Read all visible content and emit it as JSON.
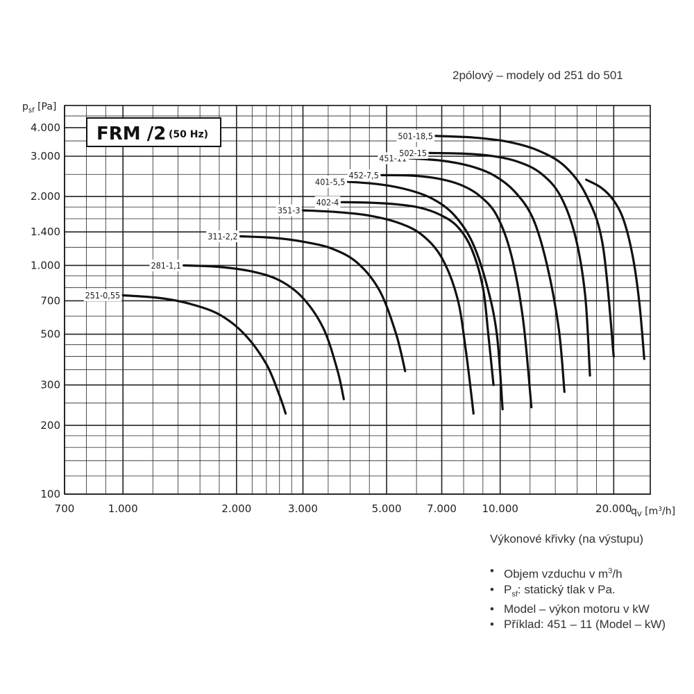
{
  "subtitle": "2pólový – modely od 251 do 501",
  "box": {
    "title": "FRM /2",
    "sub": "(50 Hz)"
  },
  "legend_title": "Výkonové křivky (na výstupu)",
  "notes": [
    [
      "Objem vzduchu v m",
      "3",
      "/h"
    ],
    [
      "P",
      "sf",
      ": statický tlak v Pa."
    ],
    [
      "Model – výkon motoru v kW"
    ],
    [
      "Příklad: 451 – 11 (Model – kW)"
    ]
  ],
  "chart_data": {
    "type": "line",
    "x_scale": "log",
    "y_scale": "log",
    "xlabel": {
      "main": "q",
      "sub": "V",
      "unit_pre": " [m",
      "sup": "3",
      "unit_post": "/h]"
    },
    "ylabel": {
      "main": "p",
      "sub": "sf",
      "unit": " [Pa]"
    },
    "xlim": [
      700,
      25000
    ],
    "ylim": [
      100,
      5000
    ],
    "x_ticks": [
      700,
      1000,
      2000,
      3000,
      5000,
      7000,
      10000,
      20000
    ],
    "x_tick_labels": [
      "700",
      "1.000",
      "2.000",
      "3.000",
      "5.000",
      "7.000",
      "10.000",
      "20.000"
    ],
    "y_ticks": [
      100,
      200,
      300,
      500,
      700,
      1000,
      1400,
      2000,
      3000,
      4000
    ],
    "y_tick_labels": [
      "100",
      "200",
      "300",
      "500",
      "700",
      "1.000",
      "1.400",
      "2.000",
      "3.000",
      "4.000"
    ],
    "grid": true,
    "series": [
      {
        "name": "251-0,55",
        "x": [
          1000,
          1250,
          1500,
          1800,
          2100,
          2400,
          2600,
          2700
        ],
        "y": [
          740,
          720,
          680,
          610,
          500,
          370,
          270,
          225
        ]
      },
      {
        "name": "281-1,1",
        "x": [
          1450,
          1800,
          2200,
          2600,
          3000,
          3400,
          3700,
          3850
        ],
        "y": [
          1000,
          985,
          940,
          860,
          720,
          530,
          350,
          260
        ]
      },
      {
        "name": "311-2,2",
        "x": [
          2050,
          2500,
          3000,
          3600,
          4200,
          4800,
          5300,
          5600
        ],
        "y": [
          1340,
          1320,
          1270,
          1180,
          1020,
          770,
          500,
          345
        ]
      },
      {
        "name": "351-3",
        "x": [
          3000,
          3700,
          4500,
          5400,
          6200,
          7000,
          7700,
          8100,
          8500
        ],
        "y": [
          1740,
          1710,
          1650,
          1530,
          1360,
          1080,
          720,
          430,
          225
        ]
      },
      {
        "name": "402-4",
        "x": [
          3800,
          4500,
          5300,
          6100,
          6900,
          7700,
          8400,
          9000,
          9300,
          9600
        ],
        "y": [
          1890,
          1880,
          1850,
          1790,
          1670,
          1480,
          1180,
          800,
          500,
          300
        ]
      },
      {
        "name": "401-5,5",
        "x": [
          3950,
          4800,
          5700,
          6600,
          7500,
          8400,
          9200,
          9800,
          10150
        ],
        "y": [
          2320,
          2260,
          2140,
          1960,
          1680,
          1280,
          830,
          500,
          235
        ]
      },
      {
        "name": "452-7,5",
        "x": [
          4850,
          5800,
          6800,
          7800,
          8800,
          9800,
          10700,
          11500,
          12100
        ],
        "y": [
          2480,
          2470,
          2400,
          2260,
          2020,
          1650,
          1110,
          580,
          240
        ]
      },
      {
        "name": "451-11",
        "x": [
          5750,
          7000,
          8300,
          9600,
          10900,
          12200,
          13300,
          14300,
          14800
        ],
        "y": [
          2940,
          2870,
          2720,
          2480,
          2110,
          1610,
          1010,
          530,
          280
        ]
      },
      {
        "name": "502-15",
        "x": [
          6500,
          8000,
          9600,
          11200,
          12800,
          14400,
          15800,
          16800,
          17300
        ],
        "y": [
          3100,
          3080,
          3000,
          2830,
          2530,
          2030,
          1350,
          740,
          330
        ]
      },
      {
        "name": "501-18,5",
        "x": [
          6750,
          8500,
          10500,
          12600,
          14800,
          16900,
          18700,
          20000
        ],
        "y": [
          3680,
          3620,
          3470,
          3180,
          2720,
          2030,
          1230,
          400
        ]
      },
      {
        "name": "",
        "x": [
          16900,
          18500,
          20000,
          21300,
          22500,
          23400,
          24100
        ],
        "y": [
          2370,
          2190,
          1920,
          1560,
          1080,
          680,
          390
        ]
      }
    ]
  }
}
